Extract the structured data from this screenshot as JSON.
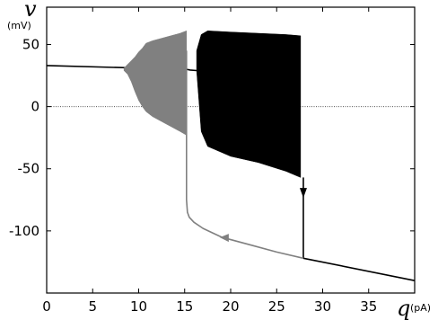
{
  "chart_data": {
    "type": "line",
    "title": "",
    "xlabel": "q",
    "xunit": "(pA)",
    "ylabel": "v",
    "yunit": "(mV)",
    "xlim": [
      0,
      40
    ],
    "ylim": [
      -150,
      80
    ],
    "xticks": [
      0,
      5,
      10,
      15,
      20,
      25,
      30,
      35
    ],
    "yticks": [
      50,
      0,
      -50,
      -100
    ],
    "grid": false,
    "legend": "none",
    "colors": {
      "gray": "#808080",
      "black": "#000000",
      "zero_line": "#555555"
    },
    "series": [
      {
        "role": "upper equilibrium branch",
        "color": "black",
        "x": [
          0,
          15.2,
          15.6,
          16.3
        ],
        "y": [
          33,
          30,
          29.4,
          29
        ]
      },
      {
        "role": "gray oscillation envelope",
        "color": "gray",
        "x": [
          8.4,
          8.8,
          9.2,
          9.6,
          10.0,
          10.4,
          10.8,
          11.5,
          12.5,
          13.5,
          14.5,
          15.2
        ],
        "ymax": [
          31,
          34,
          37,
          40,
          44,
          47,
          51,
          53,
          55,
          57,
          59,
          61
        ],
        "ymin": [
          29,
          26,
          20,
          12,
          5,
          0,
          -4,
          -8,
          -12,
          -16,
          -20,
          -23
        ]
      },
      {
        "role": "black oscillation envelope",
        "color": "black",
        "x": [
          16.3,
          16.8,
          17.5,
          20,
          23,
          26,
          27.6
        ],
        "ymax": [
          45,
          58,
          61,
          60,
          59,
          58,
          57
        ],
        "ymin": [
          29,
          -20,
          -32,
          -40,
          -45,
          -52,
          -57
        ]
      },
      {
        "role": "black jump down",
        "color": "black",
        "x": [
          27.9,
          27.9
        ],
        "y": [
          -57,
          -122
        ],
        "arrow_at": [
          27.9,
          -72
        ]
      },
      {
        "role": "lower equilibrium branch",
        "color": "black",
        "x": [
          27.9,
          40
        ],
        "y": [
          -122,
          -140
        ]
      },
      {
        "role": "gray return path",
        "color": "gray",
        "x": [
          27.9,
          25,
          22,
          19,
          17,
          16,
          15.5,
          15.3,
          15.2,
          15.2,
          15.2
        ],
        "y": [
          -122,
          -117,
          -111,
          -105,
          -98,
          -93,
          -89,
          -85,
          -75,
          -20,
          45
        ],
        "arrow_at": [
          19.5,
          -106
        ]
      }
    ]
  }
}
